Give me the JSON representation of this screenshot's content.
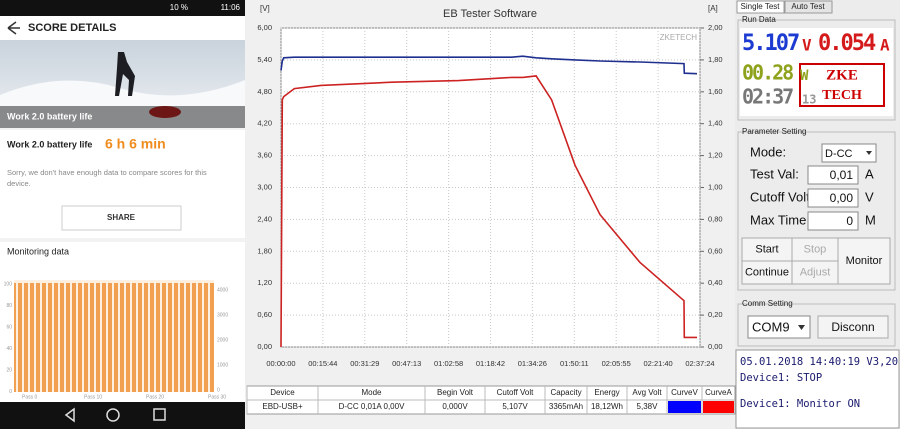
{
  "phone": {
    "status": {
      "battery": "10 %",
      "time": "11:06"
    },
    "header": "SCORE DETAILS",
    "image_caption": "Work 2.0 battery life",
    "result": {
      "label": "Work 2.0 battery life",
      "value": "6 h 6 min"
    },
    "note": [
      "Sorry, we don't have enough data to compare scores for this",
      "device."
    ],
    "share": "SHARE",
    "monitoring": {
      "title": "Monitoring data",
      "left_ticks": [
        "100",
        "80",
        "60",
        "40",
        "20",
        "0"
      ],
      "right_ticks": [
        "4000",
        "3000",
        "2000",
        "1000",
        "0"
      ],
      "x_labels": [
        "Pass 0",
        "Pass 10",
        "Pass 20",
        "Pass 30"
      ]
    }
  },
  "chart_data": {
    "type": "line",
    "title": "EB Tester Software",
    "y_label": "[V]",
    "y2_label": "[A]",
    "watermark": "ZKETECH",
    "x": [
      0,
      30,
      60,
      300,
      900,
      2500,
      4000,
      5200,
      5450,
      5750,
      6100,
      6627,
      7190,
      8092,
      9083,
      9090,
      9376
    ],
    "series": [
      {
        "color": "#1f2f8f",
        "values": [
          5.2,
          5.38,
          5.44,
          5.45,
          5.45,
          5.45,
          5.45,
          5.45,
          5.47,
          5.44,
          5.42,
          5.4,
          5.38,
          5.36,
          5.33,
          5.15,
          5.14
        ]
      },
      {
        "color": "#cc2222",
        "axis": "y2",
        "values": [
          0,
          1.55,
          1.57,
          1.62,
          1.64,
          1.66,
          1.67,
          1.69,
          1.69,
          1.7,
          1.55,
          1.14,
          0.83,
          0.53,
          0.29,
          0.06,
          0.06
        ]
      }
    ],
    "xlim": [
      0,
      9444
    ],
    "xticks": [
      {
        "value": 0,
        "label": "00:00:00"
      },
      {
        "value": 944,
        "label": "00:15:44"
      },
      {
        "value": 1889,
        "label": "00:31:29"
      },
      {
        "value": 2833,
        "label": "00:47:13"
      },
      {
        "value": 3778,
        "label": "01:02:58"
      },
      {
        "value": 4722,
        "label": "01:18:42"
      },
      {
        "value": 5666,
        "label": "01:34:26"
      },
      {
        "value": 6611,
        "label": "01:50:11"
      },
      {
        "value": 7555,
        "label": "02:05:55"
      },
      {
        "value": 8500,
        "label": "02:21:40"
      },
      {
        "value": 9444,
        "label": "02:37:24"
      }
    ],
    "ylim": [
      0,
      6
    ],
    "yticks": [
      {
        "value": 0,
        "label": "0,00"
      },
      {
        "value": 0.6,
        "label": "0,60"
      },
      {
        "value": 1.2,
        "label": "1,20"
      },
      {
        "value": 1.8,
        "label": "1,80"
      },
      {
        "value": 2.4,
        "label": "2,40"
      },
      {
        "value": 3,
        "label": "3,00"
      },
      {
        "value": 3.6,
        "label": "3,60"
      },
      {
        "value": 4.2,
        "label": "4,20"
      },
      {
        "value": 4.8,
        "label": "4,80"
      },
      {
        "value": 5.4,
        "label": "5,40"
      },
      {
        "value": 6,
        "label": "6,00"
      }
    ],
    "y2lim": [
      0,
      2
    ],
    "y2ticks": [
      {
        "value": 0,
        "label": "0,00"
      },
      {
        "value": 0.2,
        "label": "0,20"
      },
      {
        "value": 0.4,
        "label": "0,40"
      },
      {
        "value": 0.6,
        "label": "0,60"
      },
      {
        "value": 0.8,
        "label": "0,80"
      },
      {
        "value": 1,
        "label": "1,00"
      },
      {
        "value": 1.2,
        "label": "1,20"
      },
      {
        "value": 1.4,
        "label": "1,40"
      },
      {
        "value": 1.6,
        "label": "1,60"
      },
      {
        "value": 1.8,
        "label": "1,80"
      },
      {
        "value": 2,
        "label": "2,00"
      }
    ],
    "grid": true
  },
  "table": {
    "headers": [
      "Device",
      "Mode",
      "Begin Volt",
      "Cutoff Volt",
      "Capacity",
      "Energy",
      "Avg Volt",
      "CurveV",
      "CurveA"
    ],
    "rows": [
      [
        "EBD-USB+",
        "D-CC  0,01A  0,00V",
        "0,000V",
        "5,107V",
        "3365mAh",
        "18,12Wh",
        "5,38V"
      ]
    ],
    "curve_colors": [
      "#0000ff",
      "#ff0000"
    ]
  },
  "panel": {
    "tabs": [
      "Single Test",
      "Auto Test"
    ],
    "run_data": {
      "title": "Run Data",
      "voltage": "5.107",
      "voltage_unit": "V",
      "current": "0.054",
      "current_unit": "A",
      "power": "00.28",
      "power_unit": "W",
      "time": "02:37",
      "time_sec": "13",
      "logo": [
        "ZKE",
        "TECH"
      ]
    },
    "parameter": {
      "title": "Parameter Setting",
      "mode_label": "Mode:",
      "mode": "D-CC",
      "fields": [
        {
          "label": "Test Val:",
          "value": "0,01",
          "unit": "A"
        },
        {
          "label": "Cutoff Volt:",
          "value": "0,00",
          "unit": "V"
        },
        {
          "label": "Max Time:",
          "value": "0",
          "unit": "M"
        }
      ],
      "buttons": [
        "Start",
        "Stop",
        "Continue",
        "Adjust",
        "Monitor"
      ]
    },
    "comm": {
      "title": "Comm Setting",
      "port": "COM9",
      "button": "Disconn"
    },
    "log": [
      "05.01.2018 14:40:19  V3,20",
      "Device1: STOP",
      "Device1: Monitor ON"
    ]
  }
}
